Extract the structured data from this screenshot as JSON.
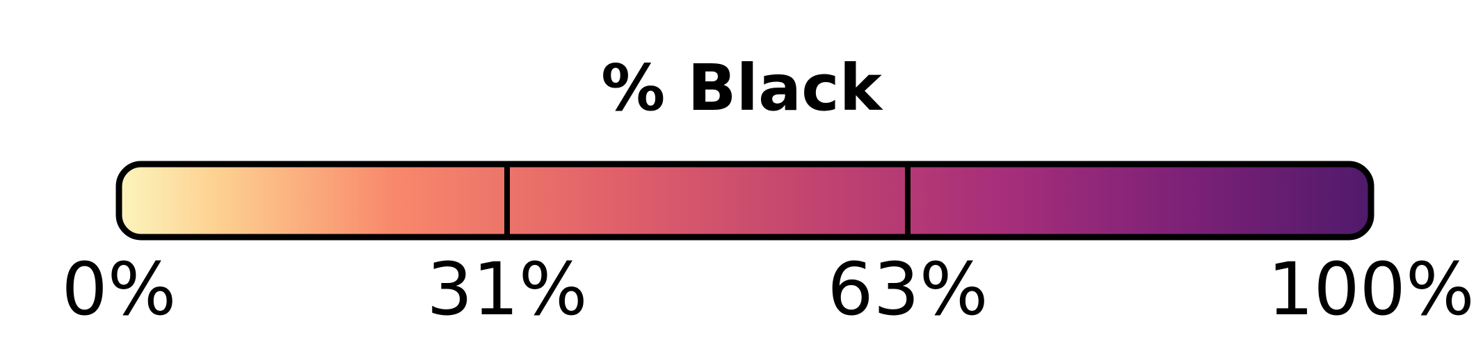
{
  "chart_data": {
    "type": "colorbar",
    "title": "% Black",
    "colormap": "magma",
    "range": [
      0,
      100
    ],
    "tick_values": [
      0,
      31,
      63,
      100
    ],
    "tick_labels": [
      "0%",
      "31%",
      "63%",
      "100%"
    ],
    "divider_values": [
      31,
      63
    ],
    "gradient_stops": [
      {
        "value": 0,
        "color": "#fcf5bc"
      },
      {
        "value": 8,
        "color": "#fdd090"
      },
      {
        "value": 22,
        "color": "#f8886b"
      },
      {
        "value": 40,
        "color": "#e0606a"
      },
      {
        "value": 55,
        "color": "#c2456f"
      },
      {
        "value": 70,
        "color": "#a82f7a"
      },
      {
        "value": 85,
        "color": "#7d2177"
      },
      {
        "value": 100,
        "color": "#501a6b"
      }
    ],
    "outline_color": "#000000"
  }
}
